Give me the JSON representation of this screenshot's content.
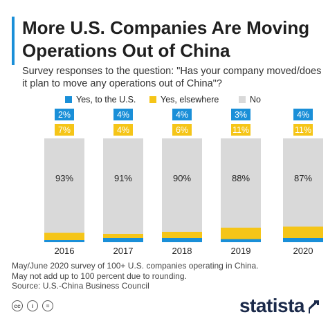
{
  "header": {
    "title": "More U.S. Companies Are Moving Operations Out of China",
    "subtitle": "Survey responses to the question: \"Has your company moved/does it plan to move any operations out of China\"?"
  },
  "chart_data": {
    "type": "bar",
    "stacked": true,
    "categories": [
      "2016",
      "2017",
      "2018",
      "2019",
      "2020"
    ],
    "series": [
      {
        "name": "Yes, to the U.S.",
        "values": [
          2,
          4,
          4,
          3,
          4
        ],
        "labels": [
          "2%",
          "4%",
          "4%",
          "3%",
          "4%"
        ],
        "color": "#1a8fd8"
      },
      {
        "name": "Yes, elsewhere",
        "values": [
          7,
          4,
          6,
          11,
          11
        ],
        "labels": [
          "7%",
          "4%",
          "6%",
          "11%",
          "11%"
        ],
        "color": "#f5c518"
      },
      {
        "name": "No",
        "values": [
          93,
          91,
          90,
          88,
          87
        ],
        "labels": [
          "93%",
          "91%",
          "90%",
          "88%",
          "87%"
        ],
        "color": "#d9d9d9"
      }
    ],
    "ylim": [
      0,
      100
    ],
    "grid": false,
    "legend": "top"
  },
  "notes": {
    "line1": "May/June 2020 survey of 100+ U.S. companies operating in China.",
    "line2": "May not add up to 100 percent due to rounding.",
    "source": "Source: U.S.-China Business Council"
  },
  "footer": {
    "brand": "statista",
    "icons": [
      "cc-icon",
      "attribution-icon",
      "no-derivatives-icon"
    ],
    "cc_label": "cc",
    "by_label": "i",
    "nd_label": "="
  }
}
